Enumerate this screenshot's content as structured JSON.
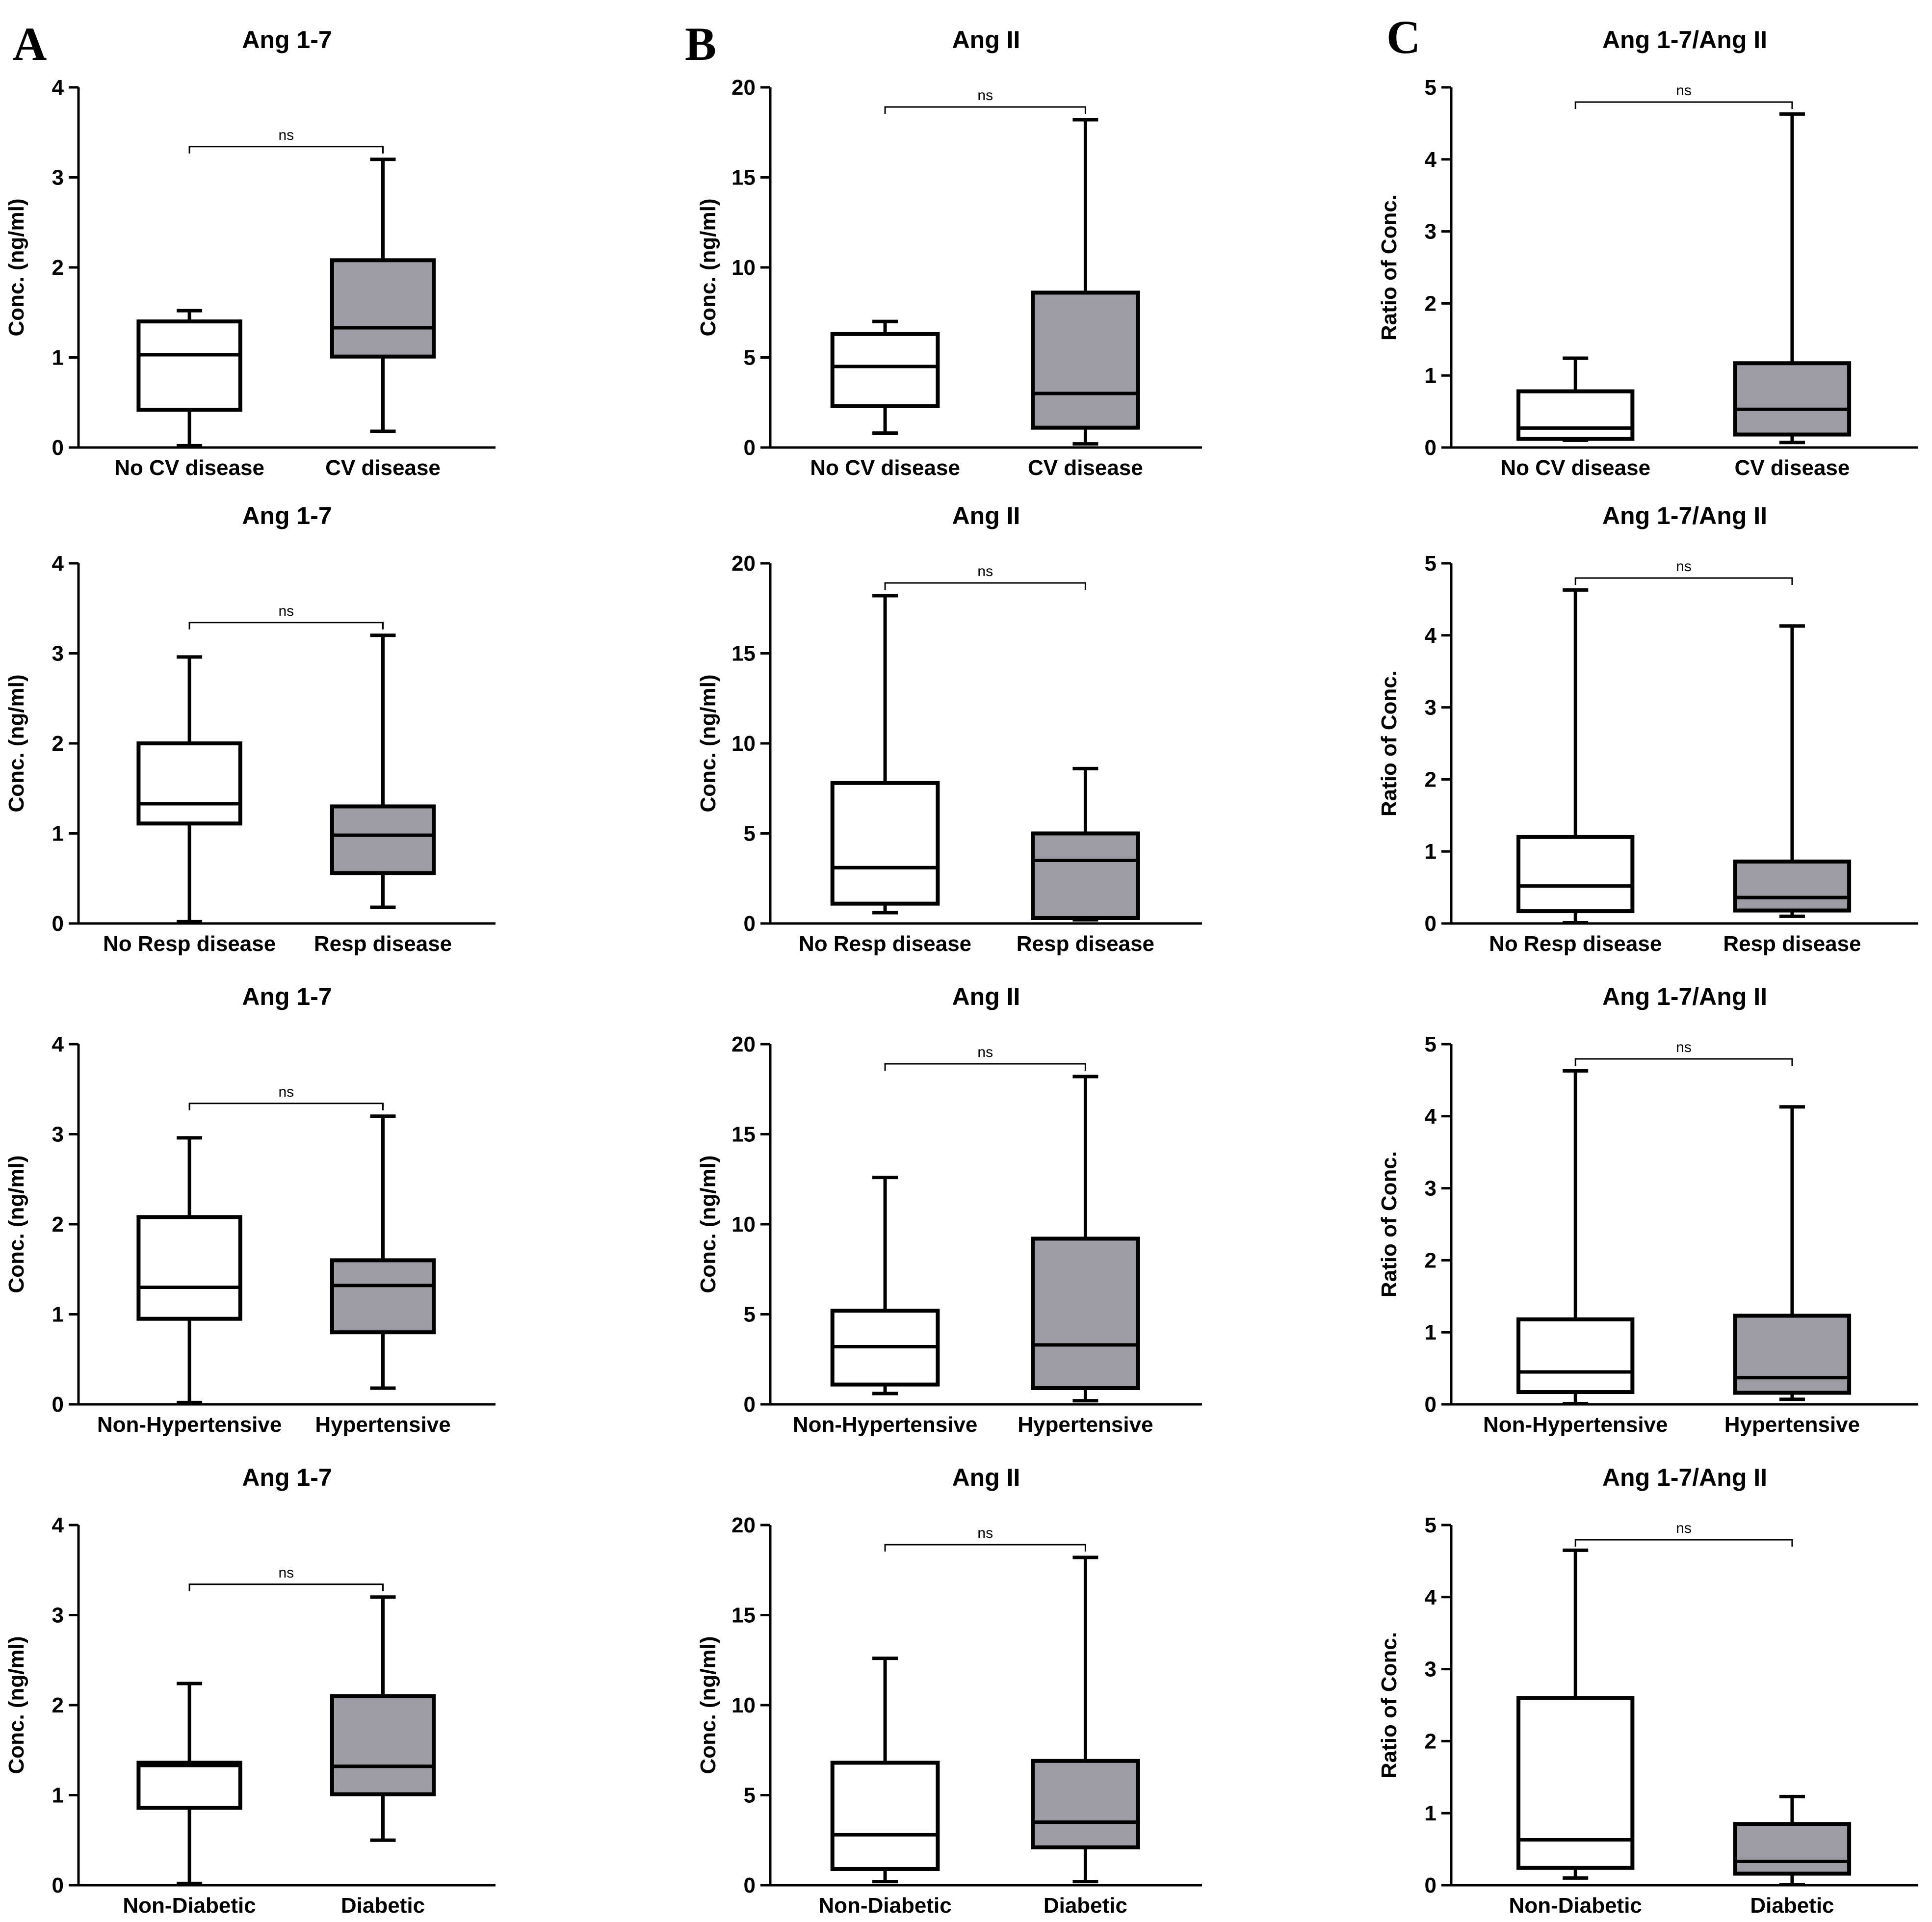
{
  "panel_labels": [
    "A",
    "B",
    "C"
  ],
  "colors": {
    "box_a": "#ffffff",
    "box_b": "#9d9ba4",
    "stroke": "#000000",
    "text": "#000000"
  },
  "chart_data": [
    {
      "type": "box",
      "title": "Ang 1-7",
      "ylabel": "Conc. (ng/ml)",
      "ylim": [
        0,
        4
      ],
      "yticks": [
        0,
        1,
        2,
        3,
        4
      ],
      "annotation": "ns",
      "categories": [
        "No CV disease",
        "CV disease"
      ],
      "series": [
        {
          "name": "No CV disease",
          "min": 0.02,
          "q1": 0.42,
          "median": 1.03,
          "q3": 1.4,
          "max": 1.52
        },
        {
          "name": "CV disease",
          "min": 0.18,
          "q1": 1.01,
          "median": 1.33,
          "q3": 2.08,
          "max": 3.2
        }
      ]
    },
    {
      "type": "box",
      "title": "Ang II",
      "ylabel": "Conc. (ng/ml)",
      "ylim": [
        0,
        20
      ],
      "yticks": [
        0,
        5,
        10,
        15,
        20
      ],
      "annotation": "ns",
      "categories": [
        "No CV disease",
        "CV disease"
      ],
      "series": [
        {
          "name": "No CV disease",
          "min": 0.8,
          "q1": 2.3,
          "median": 4.5,
          "q3": 6.3,
          "max": 7.0
        },
        {
          "name": "CV disease",
          "min": 0.2,
          "q1": 1.1,
          "median": 3.0,
          "q3": 8.6,
          "max": 18.2
        }
      ]
    },
    {
      "type": "box",
      "title": "Ang 1-7/Ang II",
      "ylabel": "Ratio of Conc.",
      "ylim": [
        0,
        5
      ],
      "yticks": [
        0,
        1,
        2,
        3,
        4,
        5
      ],
      "annotation": "ns",
      "categories": [
        "No CV disease",
        "CV disease"
      ],
      "series": [
        {
          "name": "No CV disease",
          "min": 0.1,
          "q1": 0.12,
          "median": 0.27,
          "q3": 0.78,
          "max": 1.24
        },
        {
          "name": "CV disease",
          "min": 0.07,
          "q1": 0.18,
          "median": 0.53,
          "q3": 1.17,
          "max": 4.63
        }
      ]
    },
    {
      "type": "box",
      "title": "Ang 1-7",
      "ylabel": "Conc. (ng/ml)",
      "ylim": [
        0,
        4
      ],
      "yticks": [
        0,
        1,
        2,
        3,
        4
      ],
      "annotation": "ns",
      "categories": [
        "No Resp disease",
        "Resp disease"
      ],
      "series": [
        {
          "name": "No Resp disease",
          "min": 0.02,
          "q1": 1.11,
          "median": 1.33,
          "q3": 2.0,
          "max": 2.96
        },
        {
          "name": "Resp disease",
          "min": 0.18,
          "q1": 0.56,
          "median": 0.98,
          "q3": 1.3,
          "max": 3.2
        }
      ]
    },
    {
      "type": "box",
      "title": "Ang II",
      "ylabel": "Conc. (ng/ml)",
      "ylim": [
        0,
        20
      ],
      "yticks": [
        0,
        5,
        10,
        15,
        20
      ],
      "annotation": "ns",
      "categories": [
        "No Resp disease",
        "Resp disease"
      ],
      "series": [
        {
          "name": "No Resp disease",
          "min": 0.6,
          "q1": 1.1,
          "median": 3.1,
          "q3": 7.8,
          "max": 18.2
        },
        {
          "name": "Resp disease",
          "min": 0.2,
          "q1": 0.3,
          "median": 3.5,
          "q3": 5.0,
          "max": 8.6
        }
      ]
    },
    {
      "type": "box",
      "title": "Ang 1-7/Ang II",
      "ylabel": "Ratio of Conc.",
      "ylim": [
        0,
        5
      ],
      "yticks": [
        0,
        1,
        2,
        3,
        4,
        5
      ],
      "annotation": "ns",
      "categories": [
        "No Resp disease",
        "Resp disease"
      ],
      "series": [
        {
          "name": "No Resp disease",
          "min": 0.01,
          "q1": 0.17,
          "median": 0.52,
          "q3": 1.2,
          "max": 4.63
        },
        {
          "name": "Resp disease",
          "min": 0.1,
          "q1": 0.18,
          "median": 0.36,
          "q3": 0.86,
          "max": 4.13
        }
      ]
    },
    {
      "type": "box",
      "title": "Ang 1-7",
      "ylabel": "Conc. (ng/ml)",
      "ylim": [
        0,
        4
      ],
      "yticks": [
        0,
        1,
        2,
        3,
        4
      ],
      "annotation": "ns",
      "categories": [
        "Non-Hypertensive",
        "Hypertensive"
      ],
      "series": [
        {
          "name": "Non-Hypertensive",
          "min": 0.02,
          "q1": 0.95,
          "median": 1.3,
          "q3": 2.08,
          "max": 2.96
        },
        {
          "name": "Hypertensive",
          "min": 0.18,
          "q1": 0.8,
          "median": 1.32,
          "q3": 1.6,
          "max": 3.2
        }
      ]
    },
    {
      "type": "box",
      "title": "Ang II",
      "ylabel": "Conc. (ng/ml)",
      "ylim": [
        0,
        20
      ],
      "yticks": [
        0,
        5,
        10,
        15,
        20
      ],
      "annotation": "ns",
      "categories": [
        "Non-Hypertensive",
        "Hypertensive"
      ],
      "series": [
        {
          "name": "Non-Hypertensive",
          "min": 0.6,
          "q1": 1.1,
          "median": 3.2,
          "q3": 5.2,
          "max": 12.6
        },
        {
          "name": "Hypertensive",
          "min": 0.2,
          "q1": 0.9,
          "median": 3.3,
          "q3": 9.2,
          "max": 18.2
        }
      ]
    },
    {
      "type": "box",
      "title": "Ang 1-7/Ang II",
      "ylabel": "Ratio of Conc.",
      "ylim": [
        0,
        5
      ],
      "yticks": [
        0,
        1,
        2,
        3,
        4,
        5
      ],
      "annotation": "ns",
      "categories": [
        "Non-Hypertensive",
        "Hypertensive"
      ],
      "series": [
        {
          "name": "Non-Hypertensive",
          "min": 0.01,
          "q1": 0.17,
          "median": 0.45,
          "q3": 1.18,
          "max": 4.63
        },
        {
          "name": "Hypertensive",
          "min": 0.07,
          "q1": 0.16,
          "median": 0.37,
          "q3": 1.23,
          "max": 4.13
        }
      ]
    },
    {
      "type": "box",
      "title": "Ang 1-7",
      "ylabel": "Conc. (ng/ml)",
      "ylim": [
        0,
        4
      ],
      "yticks": [
        0,
        1,
        2,
        3,
        4
      ],
      "annotation": "ns",
      "categories": [
        "Non-Diabetic",
        "Diabetic"
      ],
      "series": [
        {
          "name": "Non-Diabetic",
          "min": 0.02,
          "q1": 0.86,
          "median": 1.33,
          "q3": 1.36,
          "max": 2.24
        },
        {
          "name": "Diabetic",
          "min": 0.5,
          "q1": 1.01,
          "median": 1.32,
          "q3": 2.1,
          "max": 3.2
        }
      ]
    },
    {
      "type": "box",
      "title": "Ang II",
      "ylabel": "Conc. (ng/ml)",
      "ylim": [
        0,
        20
      ],
      "yticks": [
        0,
        5,
        10,
        15,
        20
      ],
      "annotation": "ns",
      "categories": [
        "Non-Diabetic",
        "Diabetic"
      ],
      "series": [
        {
          "name": "Non-Diabetic",
          "min": 0.2,
          "q1": 0.9,
          "median": 2.8,
          "q3": 6.8,
          "max": 12.6
        },
        {
          "name": "Diabetic",
          "min": 0.2,
          "q1": 2.1,
          "median": 3.5,
          "q3": 6.9,
          "max": 18.2
        }
      ]
    },
    {
      "type": "box",
      "title": "Ang 1-7/Ang II",
      "ylabel": "Ratio of Conc.",
      "ylim": [
        0,
        5
      ],
      "yticks": [
        0,
        1,
        2,
        3,
        4,
        5
      ],
      "annotation": "ns",
      "categories": [
        "Non-Diabetic",
        "Diabetic"
      ],
      "series": [
        {
          "name": "Non-Diabetic",
          "min": 0.1,
          "q1": 0.24,
          "median": 0.63,
          "q3": 2.6,
          "max": 4.65
        },
        {
          "name": "Diabetic",
          "min": 0.01,
          "q1": 0.16,
          "median": 0.33,
          "q3": 0.85,
          "max": 1.23
        }
      ]
    }
  ]
}
